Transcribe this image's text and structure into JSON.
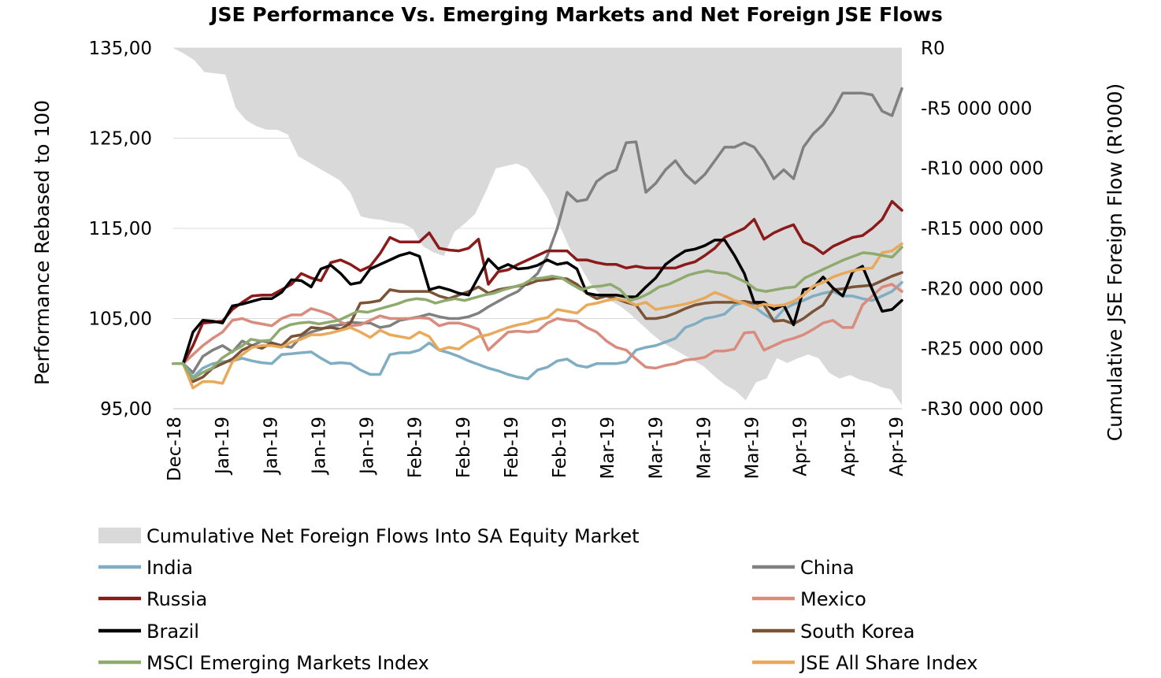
{
  "chart_data": {
    "type": "line",
    "title": "JSE Performance Vs. Emerging Markets and Net Foreign JSE Flows",
    "ylabel": "Performance Rebased to 100",
    "y2label": "Cumulative JSE Foreign Flow (R'000)",
    "ylim": [
      95,
      135
    ],
    "y2lim": [
      -30000000,
      0
    ],
    "yticks": [
      95,
      105,
      115,
      125,
      135
    ],
    "ytick_labels": [
      "95,00",
      "105,00",
      "115,00",
      "125,00",
      "135,00"
    ],
    "y2ticks": [
      -30000000,
      -25000000,
      -20000000,
      -15000000,
      -10000000,
      -5000000,
      0
    ],
    "y2tick_labels": [
      "-R30 000 000",
      "-R25 000 000",
      "-R20 000 000",
      "-R15 000 000",
      "-R10 000 000",
      "-R5 000 000",
      "R0"
    ],
    "x_tick_labels": [
      "Dec-18",
      "Jan-19",
      "Jan-19",
      "Jan-19",
      "Jan-19",
      "Feb-19",
      "Feb-19",
      "Feb-19",
      "Feb-19",
      "Mar-19",
      "Mar-19",
      "Mar-19",
      "Mar-19",
      "Apr-19",
      "Apr-19",
      "Apr-19"
    ],
    "grid": "horizontal",
    "legend_position": "bottom",
    "area_series": {
      "name": "Cumulative Net Foreign Flows Into SA Equity Market",
      "color": "#d9d9d9",
      "values": [
        0,
        -450000,
        -1000000,
        -2000000,
        -2100000,
        -2200000,
        -5000000,
        -6000000,
        -6500000,
        -6800000,
        -6800000,
        -7200000,
        -9000000,
        -9500000,
        -10000000,
        -10500000,
        -11000000,
        -12000000,
        -14000000,
        -14200000,
        -14300000,
        -14500000,
        -14600000,
        -15000000,
        -16500000,
        -17000000,
        -17300000,
        -15300000,
        -14600000,
        -13800000,
        -12000000,
        -10000000,
        -9800000,
        -9600000,
        -10000000,
        -11200000,
        -12500000,
        -14500000,
        -16500000,
        -18000000,
        -19500000,
        -20500000,
        -21000000,
        -21500000,
        -22200000,
        -23000000,
        -23800000,
        -24500000,
        -25000000,
        -25500000,
        -26000000,
        -26500000,
        -27300000,
        -28000000,
        -28500000,
        -29300000,
        -27800000,
        -27500000,
        -25800000,
        -26200000,
        -25800000,
        -25500000,
        -25800000,
        -27000000,
        -27500000,
        -27200000,
        -27600000,
        -27800000,
        -28200000,
        -28400000,
        -29700000
      ]
    },
    "series": [
      {
        "name": "China",
        "color": "#808080",
        "values": [
          100,
          100,
          99,
          100.8,
          101.5,
          102,
          101.3,
          102.5,
          102,
          102.5,
          102.3,
          102,
          101.8,
          103,
          103.5,
          103.8,
          104.2,
          104.3,
          104.6,
          104.5,
          104.5,
          104,
          104.2,
          104.8,
          105,
          105.2,
          105.5,
          105.2,
          105,
          105,
          105.2,
          105.6,
          106.3,
          106.9,
          107.5,
          108,
          109,
          110,
          112,
          115,
          119,
          118,
          118.2,
          120.2,
          121,
          121.5,
          124.5,
          124.6,
          119,
          120,
          121.5,
          122.5,
          121,
          120,
          121,
          122.5,
          124,
          124,
          124.5,
          124,
          122.5,
          120.5,
          121.5,
          120.5,
          124,
          125.5,
          126.5,
          128,
          130,
          130,
          130,
          129.8,
          128,
          127.5,
          130.5
        ]
      },
      {
        "name": "India",
        "color": "#7fadc2",
        "values": [
          100,
          100,
          98.5,
          99.5,
          100,
          100.2,
          100.3,
          100.6,
          100.3,
          100.1,
          100,
          101,
          101.1,
          101.2,
          101.3,
          100.6,
          100,
          100.1,
          100,
          99.3,
          98.8,
          98.8,
          101,
          101.2,
          101.2,
          101.5,
          102.3,
          101.5,
          101.2,
          100.8,
          100.3,
          99.9,
          99.5,
          99.2,
          98.8,
          98.5,
          98.3,
          99.3,
          99.6,
          100.3,
          100.5,
          99.8,
          99.6,
          100,
          100,
          100,
          100.2,
          101.5,
          101.8,
          102,
          102.4,
          102.8,
          104,
          104.4,
          105,
          105.2,
          105.5,
          106.5,
          106.8,
          106.3,
          105.5,
          104.8,
          106,
          106.6,
          107,
          107.5,
          107.8,
          108,
          107.5,
          107.5,
          107.2,
          107,
          107.5,
          108,
          109
        ]
      },
      {
        "name": "Mexico",
        "color": "#d98b7e",
        "values": [
          100,
          100,
          101,
          102,
          102.8,
          103.5,
          104.8,
          105,
          104.6,
          104.4,
          104.2,
          105,
          105.4,
          105.4,
          106.1,
          105.8,
          105.4,
          104.6,
          104.2,
          104.3,
          104.8,
          105.3,
          105,
          105,
          105,
          105.1,
          105,
          104.2,
          104.5,
          104.5,
          104.2,
          103.8,
          101.5,
          102.5,
          103.5,
          103.6,
          103.5,
          103.6,
          104.5,
          105,
          104.8,
          104.7,
          104,
          103.5,
          102.5,
          101.8,
          101.5,
          100.5,
          99.6,
          99.5,
          99.8,
          100,
          100.4,
          100.5,
          100.7,
          101.4,
          101.4,
          101.6,
          103.4,
          103.5,
          101.5,
          102,
          102.5,
          102.8,
          103.2,
          103.8,
          104.5,
          104.8,
          104,
          104,
          106.5,
          107.5,
          108.5,
          108.8,
          108
        ]
      },
      {
        "name": "Russia",
        "color": "#8b1a1a",
        "values": [
          100,
          100,
          102,
          104.5,
          104.6,
          104.7,
          106,
          106.8,
          107.5,
          107.6,
          107.6,
          108.2,
          108.8,
          110,
          109.5,
          109.2,
          111.2,
          111.5,
          111,
          110.3,
          110.8,
          112.2,
          114,
          113.5,
          113.5,
          113.5,
          114.5,
          112.8,
          112.6,
          112.5,
          112.8,
          113.8,
          108.8,
          110.2,
          110.4,
          111,
          111.5,
          112,
          112.5,
          112.5,
          112.5,
          111.5,
          111.5,
          111.2,
          111,
          111,
          110.6,
          110.8,
          110.6,
          110.6,
          110.6,
          110.6,
          111,
          111.3,
          112,
          112.8,
          114,
          114.5,
          115,
          116,
          113.8,
          114.5,
          115,
          115.4,
          113.5,
          113,
          112.2,
          113,
          113.5,
          114,
          114.2,
          115,
          116,
          118,
          117
        ]
      },
      {
        "name": "South Korea",
        "color": "#7a5236",
        "values": [
          100,
          100,
          98,
          98.5,
          99.5,
          100,
          100.5,
          101.5,
          102,
          101.7,
          102.3,
          102,
          103,
          103.2,
          104,
          103.9,
          104,
          103.8,
          104.5,
          106.7,
          106.8,
          107,
          108.2,
          108,
          108,
          108,
          108,
          107.5,
          107.2,
          107.6,
          108,
          108.5,
          107.8,
          108.2,
          108.4,
          108.6,
          108.8,
          109.2,
          109.3,
          109.5,
          109.4,
          108.8,
          107.8,
          107.2,
          107.5,
          107.2,
          106.8,
          106.5,
          105,
          105,
          105.2,
          105.6,
          106.1,
          106.5,
          106.7,
          106.8,
          106.8,
          106.8,
          106.9,
          106.7,
          106.5,
          104.7,
          104.8,
          104.4,
          105,
          105.8,
          106.5,
          108.2,
          108.3,
          108.5,
          108.6,
          108.7,
          109.2,
          109.7,
          110.1
        ]
      },
      {
        "name": "Brazil",
        "color": "#000000",
        "values": [
          100,
          100,
          103.5,
          104.8,
          104.7,
          104.5,
          106.4,
          106.6,
          106.9,
          107.2,
          107.2,
          107.9,
          109.3,
          109.2,
          108.5,
          110.5,
          110.9,
          110,
          108.8,
          109,
          110.5,
          111,
          111.5,
          112,
          112.3,
          111.9,
          108.2,
          108.5,
          108.2,
          107.8,
          107.6,
          109.6,
          111.6,
          110.5,
          111,
          110.5,
          110.6,
          110.9,
          111.5,
          111,
          111.2,
          110.5,
          107.8,
          107.6,
          107.6,
          107.6,
          107.4,
          107.4,
          108.5,
          109.5,
          111,
          111.8,
          112.5,
          112.7,
          113.1,
          113.7,
          113.7,
          112,
          110,
          106.8,
          106.8,
          106,
          106.5,
          104.3,
          108.2,
          108.4,
          109.6,
          108.4,
          107.5,
          110.2,
          110.8,
          108.2,
          105.8,
          106,
          107
        ]
      },
      {
        "name": "JSE All Share Index",
        "color": "#e8a95b",
        "values": [
          100,
          100,
          97.3,
          98,
          98,
          97.8,
          100.2,
          101,
          101.8,
          102,
          102,
          101.8,
          102.4,
          102.7,
          103.2,
          103.2,
          103.4,
          103.7,
          104,
          103.5,
          102.9,
          103.7,
          103.2,
          103,
          102.8,
          103.5,
          103,
          101.5,
          101.8,
          101.6,
          102.4,
          103,
          103.2,
          103.6,
          104,
          104.3,
          104.5,
          104.9,
          105.1,
          106,
          105.8,
          105.6,
          106.5,
          106.7,
          107,
          107.2,
          107,
          106.5,
          106.8,
          106,
          106.2,
          106.4,
          106.6,
          106.9,
          107.3,
          107.9,
          107.5,
          107,
          106.7,
          106.2,
          106.6,
          106.4,
          106.5,
          106.9,
          107.6,
          108.6,
          109,
          109.6,
          110,
          110.3,
          110.5,
          110.6,
          112.3,
          112.5,
          113.3
        ]
      },
      {
        "name": "MSCI Emerging Markets Index",
        "color": "#8faa6e",
        "values": [
          100,
          100,
          98.3,
          99,
          99.5,
          100.6,
          101.3,
          101.9,
          102.7,
          102.5,
          102.6,
          103.8,
          104.3,
          104.5,
          104.6,
          104.4,
          104.6,
          104.8,
          105.3,
          105.8,
          105.7,
          106,
          106.3,
          106.6,
          107,
          107.2,
          107.1,
          106.7,
          107,
          107.2,
          107,
          107.3,
          107.6,
          107.8,
          108.2,
          108.5,
          108.8,
          109.4,
          109.5,
          109.7,
          109.5,
          108.8,
          108.2,
          108.5,
          108.6,
          108.8,
          108.2,
          107,
          107.3,
          107.8,
          108.5,
          108.8,
          109.3,
          109.8,
          110.1,
          110.3,
          110.1,
          110,
          109.5,
          109,
          108.2,
          108,
          108.2,
          108.4,
          108.5,
          109.5,
          110,
          110.5,
          111,
          111.5,
          111.9,
          112.3,
          112.2,
          112,
          111.8,
          112.9
        ]
      }
    ]
  }
}
